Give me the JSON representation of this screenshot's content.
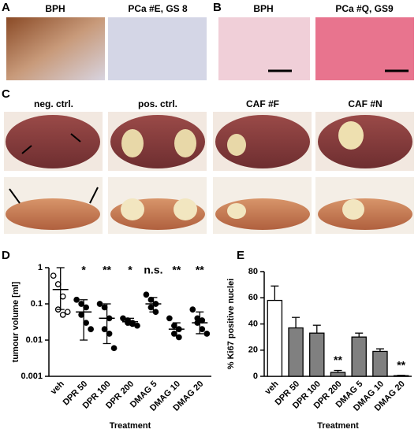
{
  "panels": {
    "A": {
      "label": "A",
      "titles": [
        "BPH",
        "PCa #E, GS 8"
      ]
    },
    "B": {
      "label": "B",
      "titles": [
        "BPH",
        "PCa #Q, GS9"
      ]
    },
    "C": {
      "label": "C",
      "titles": [
        "neg. ctrl.",
        "pos. ctrl.",
        "CAF #F",
        "CAF #N"
      ]
    }
  },
  "chart_data": [
    {
      "type": "scatter",
      "label": "D",
      "ylabel": "tumour volume [ml]",
      "xlabel": "Treatment",
      "categories": [
        "veh",
        "DPR 50",
        "DPR 100",
        "DPR 200",
        "DMAG 5",
        "DMAG 10",
        "DMAG 20"
      ],
      "points": [
        [
          0.6,
          0.35,
          0.16,
          0.07,
          0.05,
          0.06
        ],
        [
          0.13,
          0.1,
          0.08,
          0.05,
          0.03,
          0.02
        ],
        [
          0.1,
          0.08,
          0.04,
          0.02,
          0.015,
          0.006
        ],
        [
          0.04,
          0.035,
          0.03,
          0.03,
          0.028,
          0.025
        ],
        [
          0.18,
          0.13,
          0.1,
          0.08,
          0.06
        ],
        [
          0.04,
          0.025,
          0.02,
          0.015,
          0.012
        ],
        [
          0.07,
          0.04,
          0.035,
          0.03,
          0.02,
          0.015
        ]
      ],
      "means": [
        0.25,
        0.06,
        0.04,
        0.032,
        0.1,
        0.02,
        0.03
      ],
      "lower": [
        0.07,
        0.01,
        0.008,
        0.026,
        0.06,
        0.013,
        0.015
      ],
      "upper": [
        1,
        0.13,
        0.1,
        0.04,
        0.15,
        0.03,
        0.06
      ],
      "annotations": [
        null,
        "*",
        "**",
        "*",
        "n.s.",
        "**",
        "**"
      ],
      "color": "#000000",
      "log_scale": true,
      "ylim": [
        0.001,
        1
      ],
      "yticks": [
        0.001,
        0.01,
        0.1,
        1
      ]
    },
    {
      "type": "bar",
      "label": "E",
      "ylabel": "% Ki67 positive nuclei",
      "xlabel": "Treatment",
      "categories": [
        "veh",
        "DPR 50",
        "DPR 100",
        "DPR 200",
        "DMAG 5",
        "DMAG 10",
        "DMAG 20"
      ],
      "values": [
        58,
        37,
        33,
        3,
        30,
        19,
        0.5
      ],
      "errors": [
        11,
        8,
        6,
        1.5,
        3,
        2,
        0.3
      ],
      "colors": [
        "#ffffff",
        "#808080",
        "#808080",
        "#808080",
        "#808080",
        "#808080",
        "#808080"
      ],
      "annotations": [
        null,
        null,
        null,
        "**",
        null,
        null,
        "**"
      ],
      "ylim": [
        0,
        80
      ],
      "yticks": [
        0,
        20,
        40,
        60,
        80
      ]
    }
  ]
}
